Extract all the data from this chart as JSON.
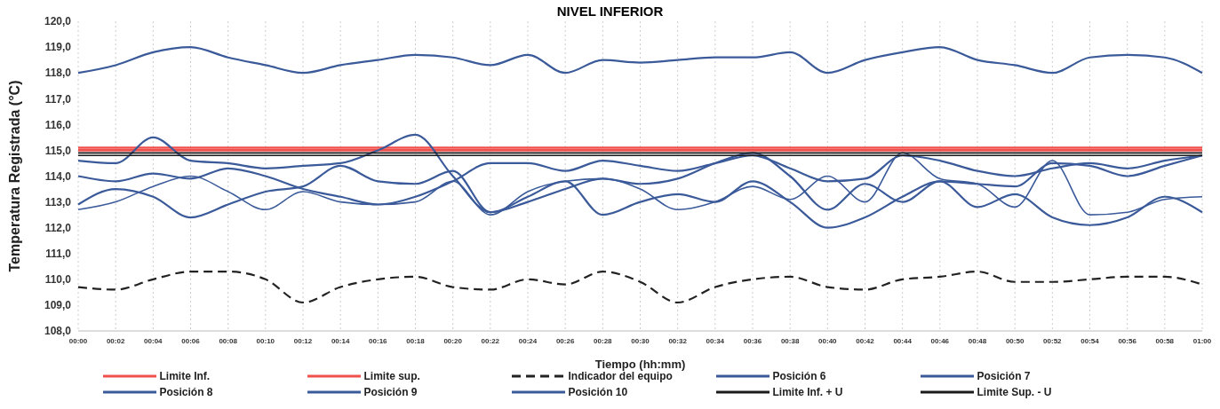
{
  "chart_data": {
    "type": "line",
    "title": "NIVEL INFERIOR",
    "xlabel": "Tiempo (hh:mm)",
    "ylabel": "Temperatura Registrada (°C)",
    "categories": [
      "00:00",
      "00:02",
      "00:04",
      "00:06",
      "00:08",
      "00:10",
      "00:12",
      "00:14",
      "00:16",
      "00:18",
      "00:20",
      "00:22",
      "00:24",
      "00:26",
      "00:28",
      "00:30",
      "00:32",
      "00:34",
      "00:36",
      "00:38",
      "00:40",
      "00:42",
      "00:44",
      "00:46",
      "00:48",
      "00:50",
      "00:52",
      "00:54",
      "00:56",
      "00:58",
      "01:00"
    ],
    "ylim": [
      108,
      120
    ],
    "yticks": [
      {
        "value": 108,
        "label": "108,0"
      },
      {
        "value": 109,
        "label": "109,0"
      },
      {
        "value": 110,
        "label": "110,0"
      },
      {
        "value": 111,
        "label": "111,0"
      },
      {
        "value": 112,
        "label": "112,0"
      },
      {
        "value": 113,
        "label": "113,0"
      },
      {
        "value": 114,
        "label": "114,0"
      },
      {
        "value": 115,
        "label": "115,0"
      },
      {
        "value": 116,
        "label": "116,0"
      },
      {
        "value": 117,
        "label": "117,0"
      },
      {
        "value": 118,
        "label": "118,0"
      },
      {
        "value": 119,
        "label": "119,0"
      },
      {
        "value": 120,
        "label": "120,0"
      }
    ],
    "grid": "x",
    "legend": "bottom",
    "marker": "none",
    "line_style": "solid",
    "series": [
      {
        "name": "Limite Inf.",
        "color": "#f0504c",
        "values": [
          115,
          115,
          115,
          115,
          115,
          115,
          115,
          115,
          115,
          115,
          115,
          115,
          115,
          115,
          115,
          115,
          115,
          115,
          115,
          115,
          115,
          115,
          115,
          115,
          115,
          115,
          115,
          115,
          115,
          115,
          115
        ]
      },
      {
        "name": "Limite sup.",
        "color": "#f0504c",
        "values": [
          115.1,
          115.1,
          115.1,
          115.1,
          115.1,
          115.1,
          115.1,
          115.1,
          115.1,
          115.1,
          115.1,
          115.1,
          115.1,
          115.1,
          115.1,
          115.1,
          115.1,
          115.1,
          115.1,
          115.1,
          115.1,
          115.1,
          115.1,
          115.1,
          115.1,
          115.1,
          115.1,
          115.1,
          115.1,
          115.1,
          115.1
        ]
      },
      {
        "name": "Indicador del equipo",
        "color": "#222222",
        "line_style": "dashed",
        "values": [
          109.7,
          109.6,
          110.0,
          110.3,
          110.3,
          110.0,
          109.1,
          109.7,
          110.0,
          110.1,
          109.7,
          109.6,
          110.0,
          109.8,
          110.3,
          109.9,
          109.1,
          109.7,
          110.0,
          110.1,
          109.7,
          109.6,
          110.0,
          110.1,
          110.3,
          109.9,
          109.9,
          110.0,
          110.1,
          110.1,
          109.8
        ]
      },
      {
        "name": "Posición 6",
        "color": "#3b5a9a",
        "values": [
          118.0,
          118.3,
          118.8,
          119.0,
          118.6,
          118.3,
          118.0,
          118.3,
          118.5,
          118.7,
          118.6,
          118.3,
          118.7,
          118.0,
          118.5,
          118.4,
          118.5,
          118.6,
          118.6,
          118.8,
          118.0,
          118.5,
          118.8,
          119.0,
          118.5,
          118.3,
          118.0,
          118.6,
          118.7,
          118.6,
          118.0
        ]
      },
      {
        "name": "Posición 7",
        "color": "#3b5a9a",
        "values": [
          114.6,
          114.5,
          115.5,
          114.6,
          114.5,
          114.3,
          114.4,
          114.5,
          115.0,
          115.6,
          114.0,
          112.6,
          113.0,
          113.5,
          113.9,
          113.7,
          113.9,
          114.5,
          114.9,
          114.0,
          112.7,
          113.7,
          113.0,
          113.8,
          113.7,
          113.6,
          114.5,
          114.4,
          114.0,
          114.4,
          114.8
        ]
      },
      {
        "name": "Posición 8",
        "color": "#3b5a9a",
        "values": [
          114.0,
          113.8,
          114.1,
          113.9,
          114.3,
          114.0,
          113.5,
          113.2,
          112.9,
          113.2,
          113.8,
          114.5,
          114.5,
          114.2,
          114.6,
          114.4,
          114.2,
          114.5,
          114.8,
          114.3,
          113.8,
          113.9,
          114.8,
          114.6,
          114.2,
          114.0,
          114.3,
          114.5,
          114.3,
          114.6,
          114.8
        ]
      },
      {
        "name": "Posición 9",
        "color": "#3b5a9a",
        "values": [
          112.9,
          113.5,
          113.2,
          112.4,
          112.9,
          113.4,
          113.6,
          114.4,
          113.8,
          113.7,
          114.2,
          112.6,
          113.2,
          113.8,
          112.5,
          113.0,
          113.3,
          113.0,
          113.8,
          113.0,
          112.0,
          112.4,
          113.2,
          113.8,
          112.8,
          113.3,
          112.4,
          112.1,
          112.4,
          113.2,
          112.6
        ]
      },
      {
        "name": "Posición 10",
        "color": "#3b5a9a",
        "values": [
          112.7,
          113.0,
          113.6,
          114.0,
          113.4,
          112.7,
          113.4,
          113.0,
          112.9,
          113.0,
          113.8,
          112.5,
          113.4,
          113.8,
          113.9,
          113.5,
          112.7,
          113.0,
          113.6,
          113.1,
          114.0,
          113.0,
          114.9,
          113.9,
          113.7,
          112.8,
          114.6,
          112.5,
          112.6,
          113.1,
          113.2
        ]
      },
      {
        "name": "Limite Inf. + U",
        "color": "#1a1a1a",
        "values": [
          114.8,
          114.8,
          114.8,
          114.8,
          114.8,
          114.8,
          114.8,
          114.8,
          114.8,
          114.8,
          114.8,
          114.8,
          114.8,
          114.8,
          114.8,
          114.8,
          114.8,
          114.8,
          114.8,
          114.8,
          114.8,
          114.8,
          114.8,
          114.8,
          114.8,
          114.8,
          114.8,
          114.8,
          114.8,
          114.8,
          114.8
        ]
      },
      {
        "name": "Limite Sup. - U",
        "color": "#1a1a1a",
        "values": [
          114.9,
          114.9,
          114.9,
          114.9,
          114.9,
          114.9,
          114.9,
          114.9,
          114.9,
          114.9,
          114.9,
          114.9,
          114.9,
          114.9,
          114.9,
          114.9,
          114.9,
          114.9,
          114.9,
          114.9,
          114.9,
          114.9,
          114.9,
          114.9,
          114.9,
          114.9,
          114.9,
          114.9,
          114.9,
          114.9,
          114.9
        ]
      }
    ]
  }
}
